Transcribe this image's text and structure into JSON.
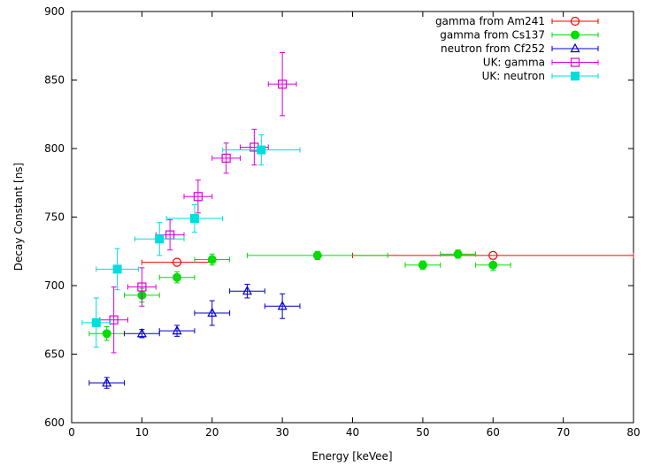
{
  "chart_data": {
    "type": "scatter",
    "title": "",
    "xlabel": "Energy [keVee]",
    "ylabel": "Decay Constant [ns]",
    "xlim": [
      0,
      80
    ],
    "ylim": [
      600,
      900
    ],
    "xticks": [
      0,
      10,
      20,
      30,
      40,
      50,
      60,
      70,
      80
    ],
    "yticks": [
      600,
      650,
      700,
      750,
      800,
      850,
      900
    ],
    "grid": false,
    "legend_position": "top-right",
    "series": [
      {
        "name": "gamma from Am241",
        "color": "#ff0000",
        "marker": "open-circle",
        "points": [
          {
            "x": 15,
            "y": 717,
            "xerr": 5,
            "yerr": 0
          },
          {
            "x": 60,
            "y": 722,
            "xerr": 20,
            "yerr": 0
          }
        ]
      },
      {
        "name": "gamma from Cs137",
        "color": "#00dd00",
        "marker": "filled-circle",
        "points": [
          {
            "x": 5,
            "y": 665,
            "xerr": 2.5,
            "yerr": 5
          },
          {
            "x": 10,
            "y": 693,
            "xerr": 2.5,
            "yerr": 5
          },
          {
            "x": 15,
            "y": 706,
            "xerr": 2.5,
            "yerr": 4
          },
          {
            "x": 20,
            "y": 719,
            "xerr": 2.5,
            "yerr": 4
          },
          {
            "x": 35,
            "y": 722,
            "xerr": 10,
            "yerr": 3
          },
          {
            "x": 50,
            "y": 715,
            "xerr": 2.5,
            "yerr": 3
          },
          {
            "x": 55,
            "y": 723,
            "xerr": 2.5,
            "yerr": 3
          },
          {
            "x": 60,
            "y": 715,
            "xerr": 2.5,
            "yerr": 4
          }
        ]
      },
      {
        "name": "neutron from Cf252",
        "color": "#0000cc",
        "marker": "open-triangle",
        "points": [
          {
            "x": 5,
            "y": 629,
            "xerr": 2.5,
            "yerr": 4
          },
          {
            "x": 10,
            "y": 665,
            "xerr": 2.5,
            "yerr": 3
          },
          {
            "x": 15,
            "y": 667,
            "xerr": 2.5,
            "yerr": 4
          },
          {
            "x": 20,
            "y": 680,
            "xerr": 2.5,
            "yerr": 9
          },
          {
            "x": 25,
            "y": 696,
            "xerr": 2.5,
            "yerr": 5
          },
          {
            "x": 30,
            "y": 685,
            "xerr": 2.5,
            "yerr": 9
          }
        ]
      },
      {
        "name": "UK: gamma",
        "color": "#dd00dd",
        "marker": "open-square",
        "points": [
          {
            "x": 6,
            "y": 675,
            "xerr": 2,
            "yerr": 24
          },
          {
            "x": 10,
            "y": 699,
            "xerr": 2,
            "yerr": 14
          },
          {
            "x": 14,
            "y": 737,
            "xerr": 2,
            "yerr": 11
          },
          {
            "x": 18,
            "y": 765,
            "xerr": 2,
            "yerr": 12
          },
          {
            "x": 22,
            "y": 793,
            "xerr": 2,
            "yerr": 11
          },
          {
            "x": 26,
            "y": 801,
            "xerr": 2,
            "yerr": 13
          },
          {
            "x": 30,
            "y": 847,
            "xerr": 2,
            "yerr": 23
          }
        ]
      },
      {
        "name": "UK: neutron",
        "color": "#00dddd",
        "marker": "filled-square",
        "points": [
          {
            "x": 3.5,
            "y": 673,
            "xerr": 2,
            "yerr": 18
          },
          {
            "x": 6.5,
            "y": 712,
            "xerr": 3,
            "yerr": 15
          },
          {
            "x": 12.5,
            "y": 734,
            "xerr": 3.5,
            "yerr": 12
          },
          {
            "x": 17.5,
            "y": 749,
            "xerr": 4,
            "yerr": 10
          },
          {
            "x": 27,
            "y": 799,
            "xerr": 5.5,
            "yerr": 11
          }
        ]
      }
    ]
  }
}
